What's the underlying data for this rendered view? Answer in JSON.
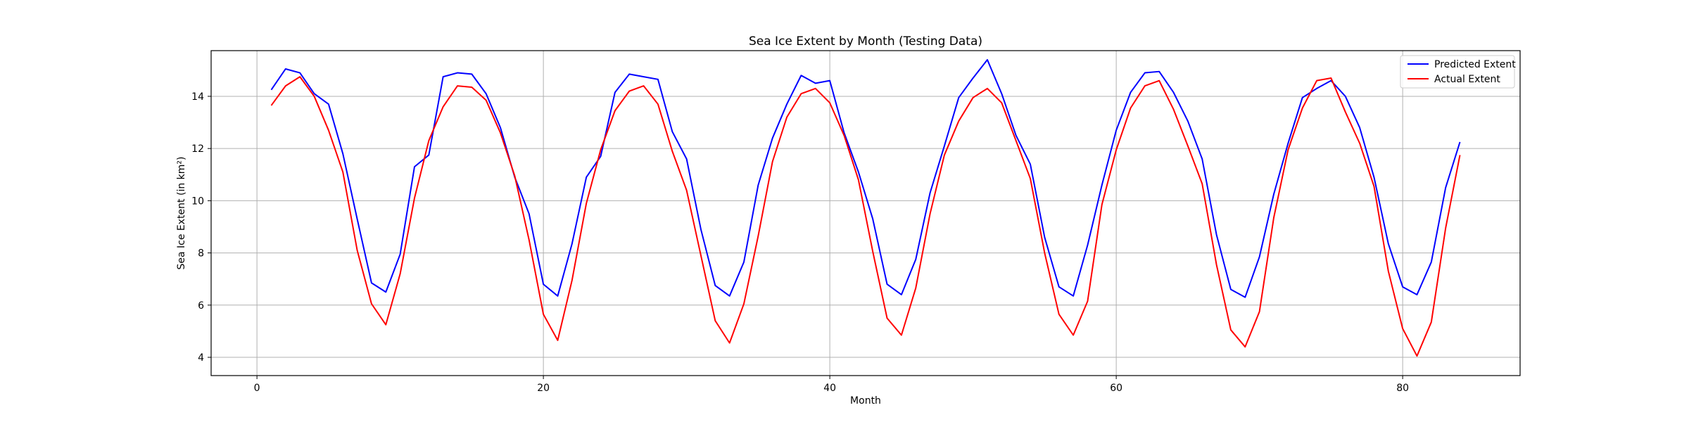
{
  "chart_data": {
    "type": "line",
    "title": "Sea Ice Extent by Month (Testing Data)",
    "xlabel": "Month",
    "ylabel": "Sea Ice Extent (in km²)",
    "xlim": [
      -3.2,
      88.2
    ],
    "ylim": [
      3.3,
      15.75
    ],
    "xticks": [
      0,
      20,
      40,
      60,
      80
    ],
    "yticks": [
      4,
      6,
      8,
      10,
      12,
      14
    ],
    "grid": true,
    "legend_position": "top-right",
    "x": [
      1,
      2,
      3,
      4,
      5,
      6,
      7,
      8,
      9,
      10,
      11,
      12,
      13,
      14,
      15,
      16,
      17,
      18,
      19,
      20,
      21,
      22,
      23,
      24,
      25,
      26,
      27,
      28,
      29,
      30,
      31,
      32,
      33,
      34,
      35,
      36,
      37,
      38,
      39,
      40,
      41,
      42,
      43,
      44,
      45,
      46,
      47,
      48,
      49,
      50,
      51,
      52,
      53,
      54,
      55,
      56,
      57,
      58,
      59,
      60,
      61,
      62,
      63,
      64,
      65,
      66,
      67,
      68,
      69,
      70,
      71,
      72,
      73,
      74,
      75,
      76,
      77,
      78,
      79,
      80,
      81,
      82,
      83,
      84
    ],
    "series": [
      {
        "name": "Predicted Extent",
        "color": "#0000ff",
        "values": [
          14.25,
          15.05,
          14.9,
          14.1,
          13.7,
          11.8,
          9.3,
          6.85,
          6.5,
          7.95,
          11.3,
          11.75,
          14.75,
          14.9,
          14.85,
          14.1,
          12.8,
          10.9,
          9.5,
          6.8,
          6.35,
          8.35,
          10.9,
          11.7,
          14.15,
          14.85,
          14.75,
          14.65,
          12.65,
          11.6,
          8.9,
          6.75,
          6.35,
          7.65,
          10.6,
          12.4,
          13.7,
          14.8,
          14.5,
          14.6,
          12.6,
          11.1,
          9.3,
          6.8,
          6.4,
          7.75,
          10.3,
          12.1,
          13.95,
          14.7,
          15.4,
          14.1,
          12.5,
          11.4,
          8.6,
          6.7,
          6.35,
          8.3,
          10.6,
          12.7,
          14.15,
          14.9,
          14.95,
          14.15,
          13.05,
          11.6,
          8.7,
          6.6,
          6.3,
          7.85,
          10.25,
          12.2,
          13.95,
          14.3,
          14.6,
          14.0,
          12.8,
          10.9,
          8.35,
          6.7,
          6.4,
          7.65,
          10.5,
          12.25
        ]
      },
      {
        "name": "Actual Extent",
        "color": "#ff0000",
        "values": [
          13.65,
          14.4,
          14.75,
          14.0,
          12.7,
          11.1,
          8.1,
          6.05,
          5.25,
          7.2,
          10.1,
          12.3,
          13.6,
          14.4,
          14.35,
          13.85,
          12.6,
          10.95,
          8.5,
          5.65,
          4.65,
          6.95,
          9.9,
          11.95,
          13.45,
          14.2,
          14.4,
          13.7,
          11.9,
          10.4,
          7.9,
          5.4,
          4.55,
          6.05,
          8.65,
          11.5,
          13.2,
          14.1,
          14.3,
          13.75,
          12.5,
          10.8,
          8.05,
          5.5,
          4.85,
          6.65,
          9.5,
          11.75,
          13.05,
          13.95,
          14.3,
          13.75,
          12.3,
          10.85,
          8.0,
          5.65,
          4.85,
          6.15,
          9.85,
          11.95,
          13.55,
          14.4,
          14.6,
          13.5,
          12.1,
          10.65,
          7.55,
          5.05,
          4.4,
          5.75,
          9.35,
          11.95,
          13.55,
          14.6,
          14.7,
          13.4,
          12.2,
          10.55,
          7.3,
          5.1,
          4.05,
          5.35,
          8.95,
          11.75
        ]
      }
    ]
  }
}
